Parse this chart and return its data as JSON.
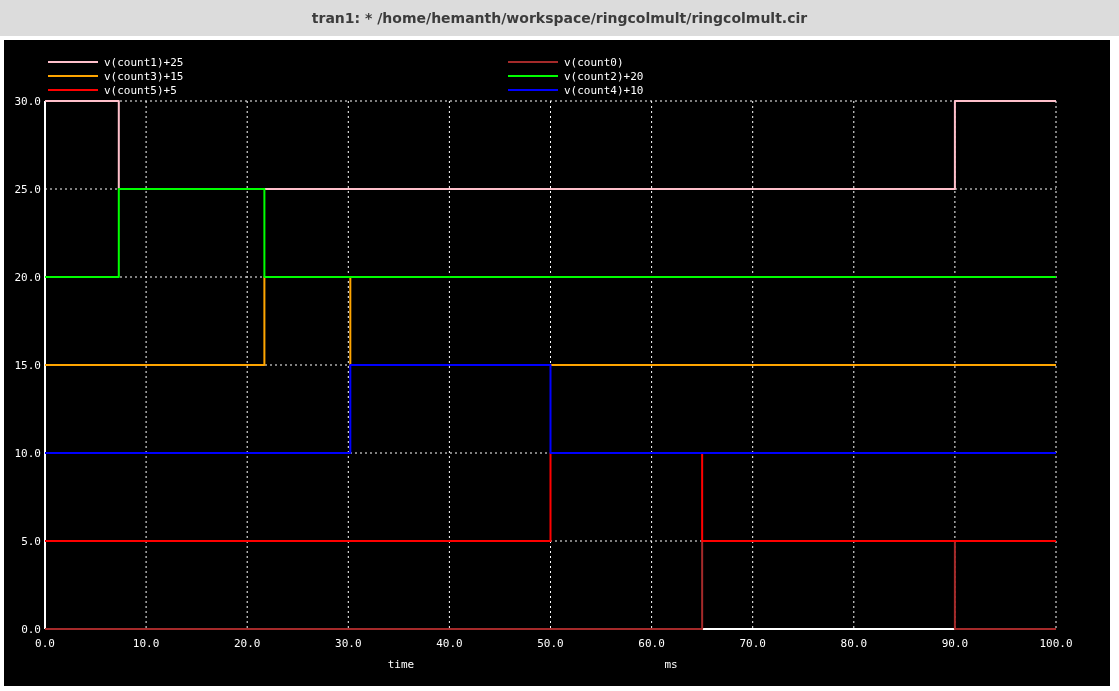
{
  "chart_data": {
    "type": "step",
    "title": "tran1: * /home/hemanth/workspace/ringcolmult/ringcolmult.cir",
    "xlabel": "time",
    "annotations": [
      "ms"
    ],
    "xlim": [
      0,
      100
    ],
    "ylim": [
      0,
      30
    ],
    "xticks": [
      {
        "value": 0,
        "label": "0.0"
      },
      {
        "value": 10,
        "label": "10.0"
      },
      {
        "value": 20,
        "label": "20.0"
      },
      {
        "value": 30,
        "label": "30.0"
      },
      {
        "value": 40,
        "label": "40.0"
      },
      {
        "value": 50,
        "label": "50.0"
      },
      {
        "value": 60,
        "label": "60.0"
      },
      {
        "value": 70,
        "label": "70.0"
      },
      {
        "value": 80,
        "label": "80.0"
      },
      {
        "value": 90,
        "label": "90.0"
      },
      {
        "value": 100,
        "label": "100.0"
      }
    ],
    "yticks": [
      {
        "value": 0,
        "label": "0.0"
      },
      {
        "value": 5,
        "label": "5.0"
      },
      {
        "value": 10,
        "label": "10.0"
      },
      {
        "value": 15,
        "label": "15.0"
      },
      {
        "value": 20,
        "label": "20.0"
      },
      {
        "value": 25,
        "label": "25.0"
      },
      {
        "value": 30,
        "label": "30.0"
      }
    ],
    "grid": true,
    "legend": "top",
    "line_style": "solid",
    "series": [
      {
        "name": "v(count1)+25",
        "color": "#ffc0cb",
        "x": [
          0,
          7.3,
          90,
          100
        ],
        "values": [
          30,
          25,
          30,
          30
        ]
      },
      {
        "name": "v(count0)",
        "color": "#a52a2a",
        "x": [
          0,
          65,
          90,
          100
        ],
        "values": [
          0,
          5,
          0,
          0
        ]
      },
      {
        "name": "v(count3)+15",
        "color": "#ffa500",
        "x": [
          0,
          21.7,
          30.2,
          100
        ],
        "values": [
          15,
          20,
          15,
          15
        ]
      },
      {
        "name": "v(count2)+20",
        "color": "#00ff00",
        "x": [
          0,
          7.3,
          21.7,
          100
        ],
        "values": [
          20,
          25,
          20,
          20
        ]
      },
      {
        "name": "v(count5)+5",
        "color": "#ff0000",
        "x": [
          0,
          50,
          65,
          100
        ],
        "values": [
          5,
          10,
          5,
          5
        ]
      },
      {
        "name": "v(count4)+10",
        "color": "#0000ff",
        "x": [
          0,
          30.2,
          50,
          100
        ],
        "values": [
          10,
          15,
          10,
          10
        ]
      }
    ]
  }
}
